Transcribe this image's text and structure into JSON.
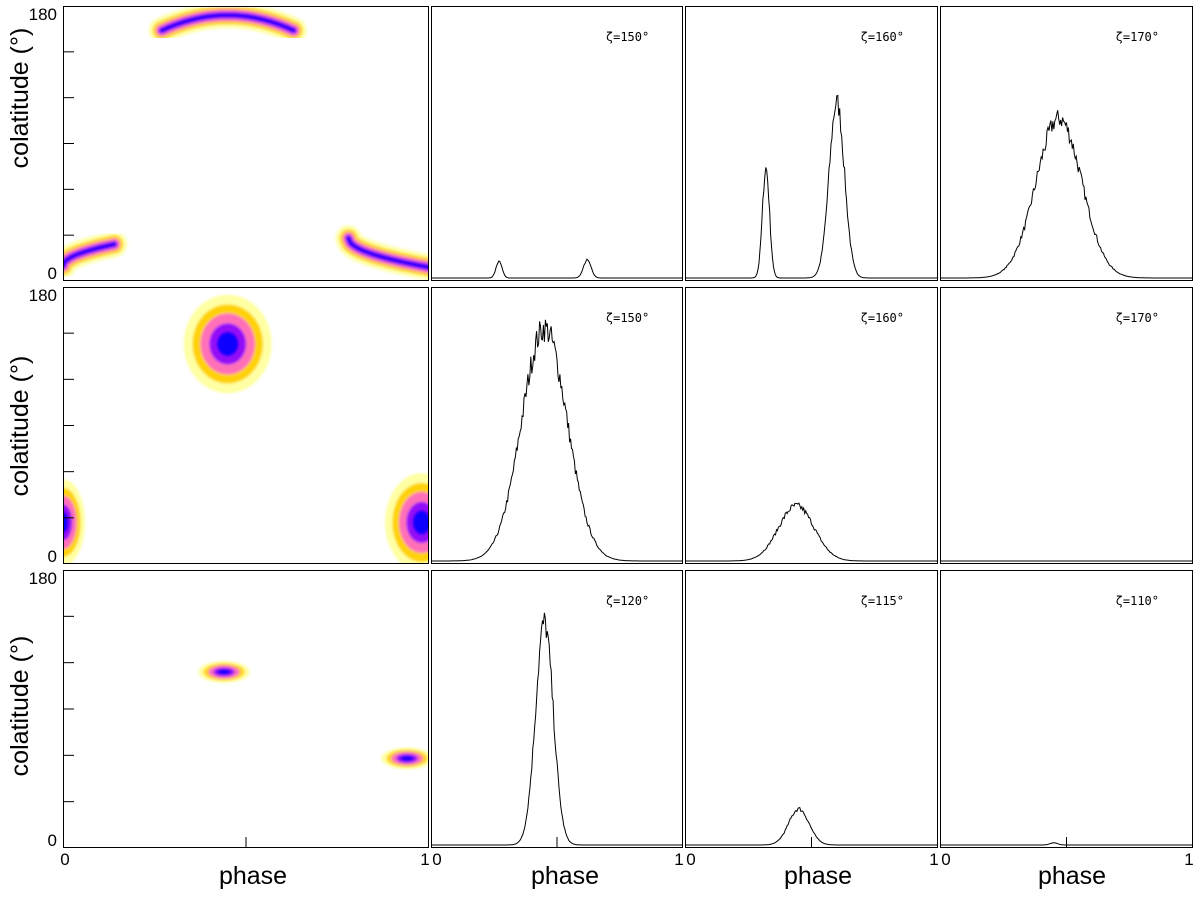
{
  "figure": {
    "y_axis_label": "colatitude (°)",
    "x_axis_label": "phase"
  },
  "chart_data": [
    {
      "type": "heatmap",
      "row": 0,
      "col": 0,
      "ylabel": "colatitude (°)",
      "xlabel": "",
      "xlim": [
        0,
        1
      ],
      "ylim": [
        0,
        180
      ],
      "yticklabels": [
        "0",
        "180"
      ],
      "blobs": [
        {
          "shape": "arc",
          "x_start": 0.27,
          "x_end": 0.63,
          "y_edge": 164,
          "y_peak": 174
        },
        {
          "shape": "arc",
          "x_start": 0.0,
          "x_end": 0.14,
          "y_edge": 10,
          "y_peak": 24
        },
        {
          "shape": "arc",
          "x_start": 0.78,
          "x_end": 1.0,
          "y_edge": 28,
          "y_peak": 9
        }
      ],
      "colormap": [
        "#ffff66",
        "#ffcc00",
        "#ff66cc",
        "#8800ff",
        "#0000ff"
      ]
    },
    {
      "type": "line",
      "row": 0,
      "col": 1,
      "annotation": "ζ=150°",
      "xlim": [
        0,
        1
      ],
      "peaks": [
        {
          "center": 0.27,
          "width": 0.012,
          "height": 0.06
        },
        {
          "center": 0.62,
          "width": 0.015,
          "height": 0.065
        }
      ]
    },
    {
      "type": "line",
      "row": 0,
      "col": 2,
      "annotation": "ζ=160°",
      "xlim": [
        0,
        1
      ],
      "peaks": [
        {
          "center": 0.32,
          "width": 0.014,
          "height": 0.4
        },
        {
          "center": 0.6,
          "width": 0.03,
          "height": 0.64
        }
      ]
    },
    {
      "type": "line",
      "row": 0,
      "col": 3,
      "annotation": "ζ=170°",
      "xlim": [
        0,
        1
      ],
      "peaks": [
        {
          "center": 0.47,
          "width": 0.09,
          "height": 0.58
        }
      ]
    },
    {
      "type": "heatmap",
      "row": 1,
      "col": 0,
      "ylabel": "colatitude (°)",
      "xlabel": "",
      "xlim": [
        0,
        1
      ],
      "ylim": [
        0,
        180
      ],
      "yticklabels": [
        "0",
        "180"
      ],
      "blobs": [
        {
          "shape": "spot",
          "x": 0.45,
          "y": 143,
          "rx": 0.12,
          "ry": 32
        },
        {
          "shape": "spot",
          "x": 0.98,
          "y": 27,
          "rx": 0.1,
          "ry": 32
        },
        {
          "shape": "spot",
          "x": 0.0,
          "y": 27,
          "rx": 0.06,
          "ry": 28
        }
      ],
      "colormap": [
        "#ffff66",
        "#ffcc00",
        "#ff66cc",
        "#8800ff",
        "#0000ff"
      ]
    },
    {
      "type": "line",
      "row": 1,
      "col": 1,
      "annotation": "ζ=150°",
      "xlim": [
        0,
        1
      ],
      "peaks": [
        {
          "center": 0.45,
          "width": 0.09,
          "height": 0.84
        }
      ]
    },
    {
      "type": "line",
      "row": 1,
      "col": 2,
      "annotation": "ζ=160°",
      "xlim": [
        0,
        1
      ],
      "peaks": [
        {
          "center": 0.44,
          "width": 0.07,
          "height": 0.2
        }
      ]
    },
    {
      "type": "line",
      "row": 1,
      "col": 3,
      "annotation": "ζ=170°",
      "xlim": [
        0,
        1
      ],
      "peaks": []
    },
    {
      "type": "heatmap",
      "row": 2,
      "col": 0,
      "ylabel": "colatitude (°)",
      "xlabel": "phase",
      "xlim": [
        0,
        1
      ],
      "ylim": [
        0,
        180
      ],
      "xticklabels": [
        "0",
        "1"
      ],
      "yticklabels": [
        "0",
        "180"
      ],
      "blobs": [
        {
          "shape": "spot",
          "x": 0.44,
          "y": 114,
          "rx": 0.07,
          "ry": 7
        },
        {
          "shape": "spot",
          "x": 0.94,
          "y": 58,
          "rx": 0.07,
          "ry": 7
        }
      ],
      "colormap": [
        "#ffff66",
        "#ffcc00",
        "#ff66cc",
        "#8800ff",
        "#0000ff"
      ]
    },
    {
      "type": "line",
      "row": 2,
      "col": 1,
      "annotation": "ζ=120°",
      "xlim": [
        0,
        1
      ],
      "xticklabels": [
        "0",
        "1"
      ],
      "xlabel": "phase",
      "peaks": [
        {
          "center": 0.45,
          "width": 0.035,
          "height": 0.8
        }
      ]
    },
    {
      "type": "line",
      "row": 2,
      "col": 2,
      "annotation": "ζ=115°",
      "xlim": [
        0,
        1
      ],
      "xticklabels": [
        "0",
        "1"
      ],
      "xlabel": "phase",
      "peaks": [
        {
          "center": 0.45,
          "width": 0.04,
          "height": 0.13
        }
      ]
    },
    {
      "type": "line",
      "row": 2,
      "col": 3,
      "annotation": "ζ=110°",
      "xlim": [
        0,
        1
      ],
      "xticklabels": [
        "0",
        "1"
      ],
      "xlabel": "phase",
      "peaks": [
        {
          "center": 0.45,
          "width": 0.015,
          "height": 0.008
        }
      ]
    }
  ]
}
